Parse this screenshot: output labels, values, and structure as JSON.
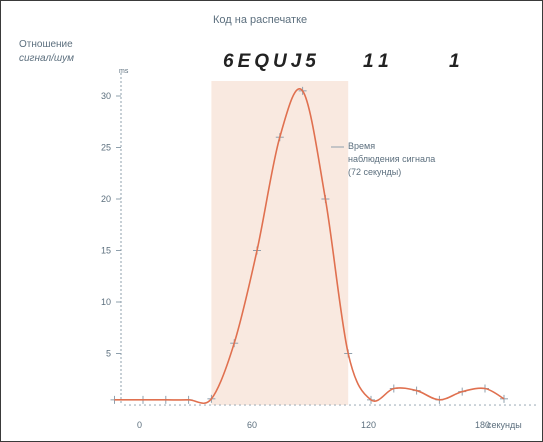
{
  "chart_data": {
    "type": "line",
    "title": "Код на распечатке",
    "code_groups": [
      "6EQUJ5",
      "11",
      "1"
    ],
    "ylabel": "Отношение сигнал/шум",
    "ylabel_lines": [
      "Отношение",
      "сигнал/шум"
    ],
    "xlabel": "секунды",
    "xlim": [
      -15,
      190
    ],
    "ylim": [
      0,
      31
    ],
    "x_ticks": [
      0,
      60,
      120,
      180
    ],
    "y_ticks": [
      5,
      10,
      15,
      20,
      25,
      30
    ],
    "y_unit_label": "ms",
    "observation_window": [
      36,
      108
    ],
    "annotation": [
      "Время",
      "наблюдения сигнала",
      "(72 секунды)"
    ],
    "series": [
      {
        "name": "",
        "x": [
          -15,
          0,
          12,
          24,
          36,
          48,
          60,
          72,
          84,
          96,
          108,
          120,
          132,
          144,
          156,
          168,
          180,
          190
        ],
        "y": [
          0.5,
          0.5,
          0.5,
          0.5,
          0.6,
          6,
          15,
          26,
          30.5,
          20,
          5,
          0.5,
          1.6,
          1.4,
          0.5,
          1.3,
          1.6,
          0.6
        ]
      }
    ],
    "colors": {
      "line": "#e0704f",
      "window_fill": "#f9e9e0",
      "axis": "#8fa0ad",
      "text": "#5c6f7e"
    }
  }
}
